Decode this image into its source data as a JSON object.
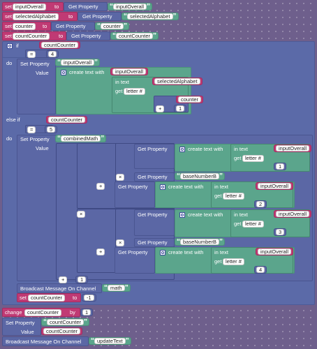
{
  "top_sets": [
    {
      "set": "set",
      "var": "inputOverall",
      "to": "to",
      "get_property": "Get Property",
      "value": "inputOverall"
    },
    {
      "set": "set",
      "var": "selectedAlphabet",
      "to": "to",
      "get_property": "Get Property",
      "value": "selectedAlphabet"
    },
    {
      "set": "set",
      "var": "counter",
      "to": "to",
      "get_property": "Get Property",
      "value": "counter"
    },
    {
      "set": "set",
      "var": "countCounter",
      "to": "to",
      "get_property": "Get Property",
      "value": "countCounter"
    }
  ],
  "if_block": {
    "if_label": "if",
    "var": "countCounter",
    "op": "=",
    "value": "4",
    "do_label": "do",
    "set_property_label": "Set Property",
    "property": "inputOverall",
    "value_label": "Value",
    "create_text_with": "create text with",
    "input_var": "inputOverall",
    "in_text": "in text",
    "selected_var": "selectedAlphabet",
    "get_label": "get",
    "letter_hash": "letter #",
    "counter_var": "counter",
    "plus": "+",
    "one": "1"
  },
  "else_if": {
    "label": "else if",
    "var": "countCounter",
    "op": "=",
    "value": "5",
    "do_label": "do",
    "set_property_label": "Set Property",
    "property": "combinedMath",
    "value_label": "Value",
    "rows": [
      {
        "get_property": "Get Property",
        "create_text_with": "create text with",
        "in_text": "in text",
        "var": "inputOverall",
        "get": "get",
        "letter": "letter #",
        "index": "1"
      },
      {
        "get_property": "Get Property",
        "base": "baseNumberB"
      },
      {
        "get_property": "Get Property",
        "create_text_with": "create text with",
        "in_text": "in text",
        "var": "inputOverall",
        "get": "get",
        "letter": "letter #",
        "index": "2"
      },
      {
        "get_property": "Get Property",
        "create_text_with": "create text with",
        "in_text": "in text",
        "var": "inputOverall",
        "get": "get",
        "letter": "letter #",
        "index": "3"
      },
      {
        "get_property": "Get Property",
        "base": "baseNumberB"
      },
      {
        "get_property": "Get Property",
        "create_text_with": "create text with",
        "in_text": "in text",
        "var": "inputOverall",
        "get": "get",
        "letter": "letter #",
        "index": "4"
      }
    ],
    "ops": {
      "times": "×",
      "plus": "+"
    },
    "plus_one": "1",
    "broadcast_label": "Broadcast Message On Channel",
    "broadcast_channel": "math",
    "set_label": "set",
    "set_var": "countCounter",
    "set_to": "to",
    "set_value": "-1"
  },
  "bottom": {
    "change_label": "change",
    "change_var": "countCounter",
    "by_label": "by",
    "by_value": "1",
    "set_property_label": "Set Property",
    "property": "countCounter",
    "value_label": "Value",
    "value_var": "countCounter",
    "broadcast_label": "Broadcast Message On Channel",
    "broadcast_channel": "updateText"
  },
  "colors": {
    "variable": "#c03a74",
    "property": "#5b67a5",
    "text": "#5ba58c",
    "control": "#5b6aa8",
    "workspace": "#6e5f8c"
  }
}
